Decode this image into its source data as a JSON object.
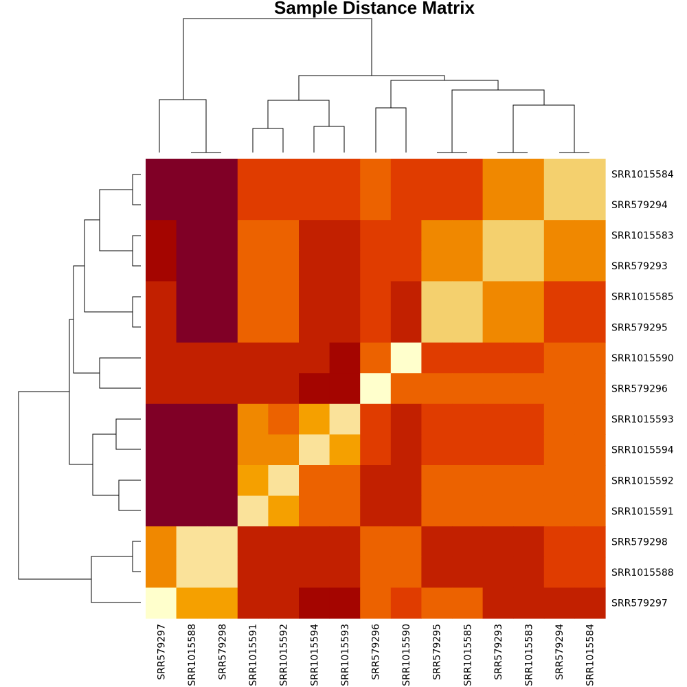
{
  "chart_data": {
    "type": "heatmap",
    "title": "Sample Distance Matrix",
    "col_labels": [
      "SRR579297",
      "SRR1015588",
      "SRR579298",
      "SRR1015591",
      "SRR1015592",
      "SRR1015594",
      "SRR1015593",
      "SRR579296",
      "SRR1015590",
      "SRR579295",
      "SRR1015585",
      "SRR579293",
      "SRR1015583",
      "SRR579294",
      "SRR1015584"
    ],
    "row_labels": [
      "SRR1015584",
      "SRR579294",
      "SRR1015583",
      "SRR579293",
      "SRR1015585",
      "SRR579295",
      "SRR1015590",
      "SRR579296",
      "SRR1015593",
      "SRR1015594",
      "SRR1015592",
      "SRR1015591",
      "SRR579298",
      "SRR1015588",
      "SRR579297"
    ],
    "color_scale": [
      "#FFFFCC",
      "#FAE29A",
      "#F4D06E",
      "#F5A000",
      "#F08800",
      "#EC6200",
      "#E03C00",
      "#C22000",
      "#A40500",
      "#800026"
    ],
    "values": [
      [
        9,
        9,
        9,
        6,
        6,
        6,
        6,
        5,
        6,
        6,
        6,
        4,
        4,
        2,
        2
      ],
      [
        9,
        9,
        9,
        6,
        6,
        6,
        6,
        5,
        6,
        6,
        6,
        4,
        4,
        2,
        2
      ],
      [
        8,
        9,
        9,
        5,
        5,
        7,
        7,
        6,
        6,
        4,
        4,
        2,
        2,
        4,
        4
      ],
      [
        8,
        9,
        9,
        5,
        5,
        7,
        7,
        6,
        6,
        4,
        4,
        2,
        2,
        4,
        4
      ],
      [
        7,
        9,
        9,
        5,
        5,
        7,
        7,
        6,
        7,
        2,
        2,
        4,
        4,
        6,
        6
      ],
      [
        7,
        9,
        9,
        5,
        5,
        7,
        7,
        6,
        7,
        2,
        2,
        4,
        4,
        6,
        6
      ],
      [
        7,
        7,
        7,
        7,
        7,
        7,
        8,
        5,
        0,
        6,
        6,
        6,
        6,
        5,
        5
      ],
      [
        7,
        7,
        7,
        7,
        7,
        8,
        8,
        0,
        5,
        5,
        5,
        5,
        5,
        5,
        5
      ],
      [
        9,
        9,
        9,
        4,
        5,
        3,
        1,
        6,
        7,
        6,
        6,
        6,
        6,
        5,
        5
      ],
      [
        9,
        9,
        9,
        4,
        4,
        1,
        3,
        6,
        7,
        6,
        6,
        6,
        6,
        5,
        5
      ],
      [
        9,
        9,
        9,
        3,
        1,
        5,
        5,
        7,
        7,
        5,
        5,
        5,
        5,
        5,
        5
      ],
      [
        9,
        9,
        9,
        1,
        3,
        5,
        5,
        7,
        7,
        5,
        5,
        5,
        5,
        5,
        5
      ],
      [
        4,
        1,
        1,
        7,
        7,
        7,
        7,
        5,
        5,
        7,
        7,
        7,
        7,
        6,
        6
      ],
      [
        4,
        1,
        1,
        7,
        7,
        7,
        7,
        5,
        5,
        7,
        7,
        7,
        7,
        6,
        6
      ],
      [
        0,
        3,
        3,
        7,
        7,
        8,
        8,
        5,
        6,
        5,
        5,
        7,
        7,
        7,
        7
      ]
    ]
  }
}
